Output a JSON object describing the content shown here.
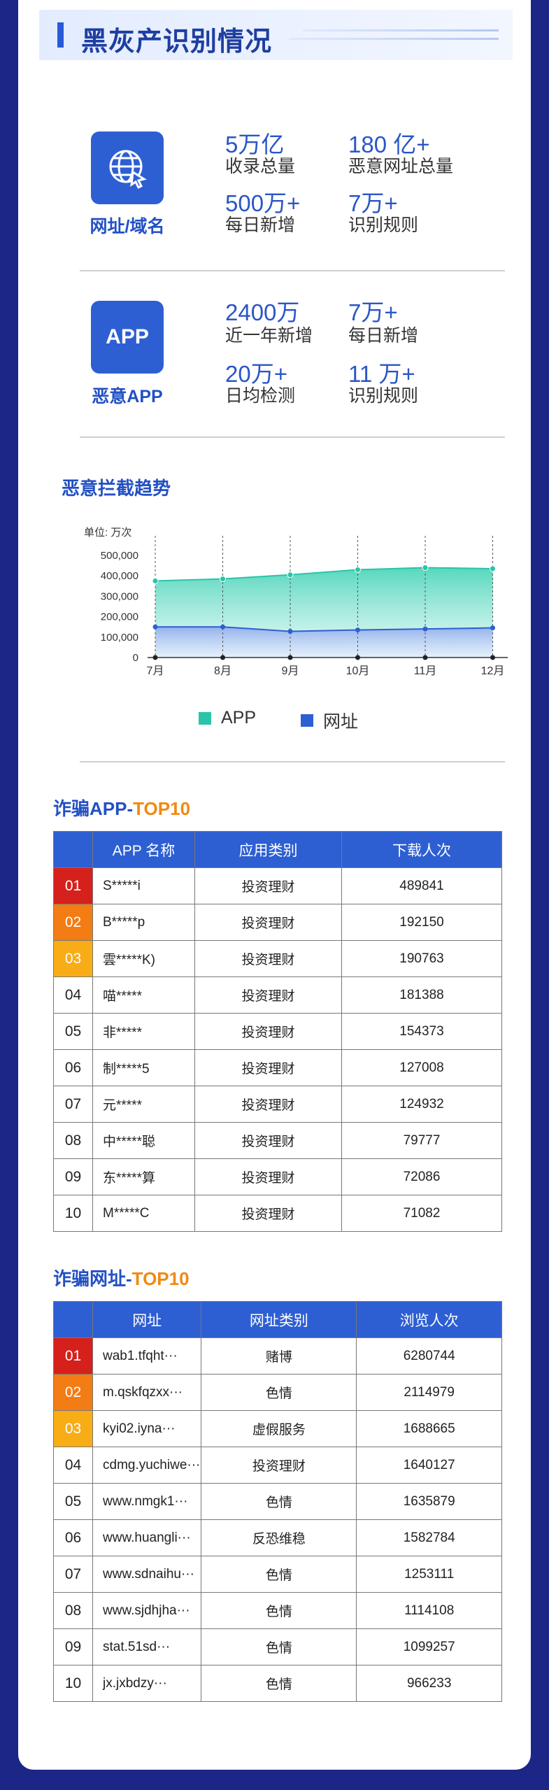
{
  "header": {
    "title": "黑灰产识别情况"
  },
  "url_block": {
    "label": "网址/域名",
    "stats": [
      {
        "value": "5万亿",
        "desc": "收录总量"
      },
      {
        "value": "180 亿+",
        "desc": "恶意网址总量"
      },
      {
        "value": "500万+",
        "desc": "每日新增"
      },
      {
        "value": "7万+",
        "desc": "识别规则"
      }
    ]
  },
  "app_block": {
    "icon_text": "APP",
    "label": "恶意APP",
    "stats": [
      {
        "value": "2400万",
        "desc": "近一年新增"
      },
      {
        "value": "7万+",
        "desc": "每日新增"
      },
      {
        "value": "20万+",
        "desc": "日均检测"
      },
      {
        "value": "11 万+",
        "desc": "识别规则"
      }
    ]
  },
  "trend": {
    "title": "恶意拦截趋势"
  },
  "chart_data": {
    "type": "area",
    "unit_label": "单位: 万次",
    "categories": [
      "7月",
      "8月",
      "9月",
      "10月",
      "11月",
      "12月"
    ],
    "yticks": [
      "0",
      "100,000",
      "200,000",
      "300,000",
      "400,000",
      "500,000"
    ],
    "ylim": [
      0,
      500000
    ],
    "series": [
      {
        "name": "APP",
        "color": "#29c4a9",
        "values": [
          375000,
          385000,
          405000,
          430000,
          440000,
          435000
        ]
      },
      {
        "name": "网址",
        "color": "#2d5fd3",
        "values": [
          150000,
          150000,
          128000,
          135000,
          140000,
          145000
        ]
      }
    ],
    "grid": "vertical-dashed",
    "legend": "bottom"
  },
  "app_top": {
    "title_a": "诈骗APP-",
    "title_b": "TOP10",
    "headers": [
      "",
      "APP 名称",
      "应用类别",
      "下载人次"
    ],
    "rows": [
      {
        "rank": "01",
        "name": "S*****i",
        "cat": "投资理财",
        "count": "489841"
      },
      {
        "rank": "02",
        "name": "B*****p",
        "cat": "投资理财",
        "count": "192150"
      },
      {
        "rank": "03",
        "name": "雲*****K)",
        "cat": "投资理财",
        "count": "190763"
      },
      {
        "rank": "04",
        "name": "喵*****",
        "cat": "投资理财",
        "count": "181388"
      },
      {
        "rank": "05",
        "name": "非*****",
        "cat": "投资理财",
        "count": "154373"
      },
      {
        "rank": "06",
        "name": "制*****5",
        "cat": "投资理财",
        "count": "127008"
      },
      {
        "rank": "07",
        "name": "元*****",
        "cat": "投资理财",
        "count": "124932"
      },
      {
        "rank": "08",
        "name": "中*****聪",
        "cat": "投资理财",
        "count": "79777"
      },
      {
        "rank": "09",
        "name": "东*****算",
        "cat": "投资理财",
        "count": "72086"
      },
      {
        "rank": "10",
        "name": "M*****C",
        "cat": "投资理财",
        "count": "71082"
      }
    ]
  },
  "url_top": {
    "title_a": "诈骗网址-",
    "title_b": "TOP10",
    "headers": [
      "",
      "网址",
      "网址类别",
      "浏览人次"
    ],
    "rows": [
      {
        "rank": "01",
        "name": "wab1.tfqht···",
        "cat": "赌博",
        "count": "6280744"
      },
      {
        "rank": "02",
        "name": "m.qskfqzxx···",
        "cat": "色情",
        "count": "2114979"
      },
      {
        "rank": "03",
        "name": "kyi02.iyna···",
        "cat": "虚假服务",
        "count": "1688665"
      },
      {
        "rank": "04",
        "name": "cdmg.yuchiwe···",
        "cat": "投资理财",
        "count": "1640127"
      },
      {
        "rank": "05",
        "name": "www.nmgk1···",
        "cat": "色情",
        "count": "1635879"
      },
      {
        "rank": "06",
        "name": "www.huangli···",
        "cat": "反恐维稳",
        "count": "1582784"
      },
      {
        "rank": "07",
        "name": "www.sdnaihu···",
        "cat": "色情",
        "count": "1253111"
      },
      {
        "rank": "08",
        "name": "www.sjdhjha···",
        "cat": "色情",
        "count": "1114108"
      },
      {
        "rank": "09",
        "name": "stat.51sd···",
        "cat": "色情",
        "count": "1099257"
      },
      {
        "rank": "10",
        "name": "jx.jxbdzy···",
        "cat": "色情",
        "count": "966233"
      }
    ]
  }
}
